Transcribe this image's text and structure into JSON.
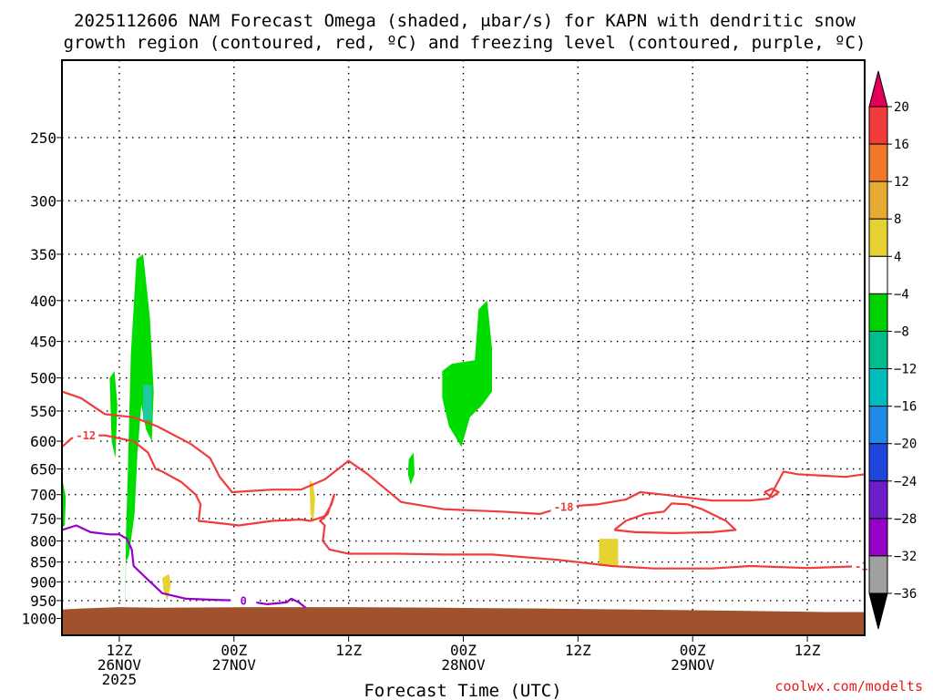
{
  "chart_data": {
    "type": "time-height cross-section",
    "title_line1": "2025112606 NAM Forecast Omega (shaded, μbar/s) for KAPN with dendritic snow",
    "title_line2": "growth region (contoured, red, ºC) and freezing level (contoured, purple, ºC)",
    "xlabel": "Forecast Time (UTC)",
    "credit": "coolwx.com/modelts",
    "y_axis": {
      "scale": "log-pressure (hPa)",
      "ylim": [
        1050,
        200
      ],
      "inverted": true,
      "ticks": [
        "250",
        "300",
        "350",
        "400",
        "450",
        "500",
        "550",
        "600",
        "650",
        "700",
        "750",
        "800",
        "850",
        "900",
        "950",
        "1000"
      ]
    },
    "x_axis": {
      "unit": "forecast hour",
      "xlim": [
        0,
        84
      ],
      "ticks": [
        {
          "h": 6,
          "line1": "12Z",
          "line2": "26NOV",
          "line3": "2025"
        },
        {
          "h": 18,
          "line1": "00Z",
          "line2": "27NOV",
          "line3": ""
        },
        {
          "h": 30,
          "line1": "12Z",
          "line2": "",
          "line3": ""
        },
        {
          "h": 42,
          "line1": "00Z",
          "line2": "28NOV",
          "line3": ""
        },
        {
          "h": 54,
          "line1": "12Z",
          "line2": "",
          "line3": ""
        },
        {
          "h": 66,
          "line1": "00Z",
          "line2": "29NOV",
          "line3": ""
        },
        {
          "h": 78,
          "line1": "12Z",
          "line2": "",
          "line3": ""
        }
      ]
    },
    "grid": true,
    "colorbar": {
      "labels": [
        "20",
        "16",
        "12",
        "8",
        "4",
        "−4",
        "−8",
        "−12",
        "−16",
        "−20",
        "−24",
        "−28",
        "−32",
        "−36"
      ],
      "colors": [
        "#e0005a",
        "#f03c3c",
        "#f07828",
        "#e6aa32",
        "#e6d232",
        "#ffffff",
        "#00d200",
        "#00be8c",
        "#00bebe",
        "#1e8ce6",
        "#1e46dc",
        "#6e1ec8",
        "#9600c8",
        "#a0a0a0",
        "#000000"
      ]
    },
    "omega_shaded": [
      {
        "color": "#00dc00",
        "category": "−4 to −8",
        "points": [
          [
            6.6,
            1025
          ],
          [
            6.7,
            780
          ],
          [
            6.9,
            650
          ],
          [
            7.2,
            470
          ],
          [
            7.8,
            355
          ],
          [
            8.5,
            350
          ],
          [
            9.2,
            420
          ],
          [
            9.6,
            520
          ],
          [
            9.4,
            600
          ],
          [
            8.8,
            580
          ],
          [
            8.3,
            540
          ],
          [
            7.9,
            620
          ],
          [
            7.6,
            740
          ],
          [
            7.0,
            835
          ],
          [
            6.7,
            850
          ]
        ]
      },
      {
        "color": "#00dc00",
        "category": "−4 to −8",
        "points": [
          [
            5.0,
            500
          ],
          [
            5.5,
            490
          ],
          [
            5.8,
            540
          ],
          [
            5.6,
            630
          ],
          [
            5.2,
            600
          ]
        ]
      },
      {
        "color": "#00dc00",
        "category": "−4 to −8",
        "points": [
          [
            0.0,
            665
          ],
          [
            0.4,
            705
          ],
          [
            0.3,
            765
          ],
          [
            0.0,
            770
          ]
        ]
      },
      {
        "color": "#00dc00",
        "category": "−4 to −8",
        "points": [
          [
            39.8,
            490
          ],
          [
            40.8,
            480
          ],
          [
            43.2,
            475
          ],
          [
            43.6,
            410
          ],
          [
            44.5,
            400
          ],
          [
            45.0,
            460
          ],
          [
            45.0,
            520
          ],
          [
            44.0,
            540
          ],
          [
            42.7,
            560
          ],
          [
            41.8,
            610
          ],
          [
            40.5,
            575
          ],
          [
            39.8,
            530
          ]
        ]
      },
      {
        "color": "#00dc00",
        "category": "−4 to −8",
        "points": [
          [
            36.3,
            632
          ],
          [
            36.8,
            620
          ],
          [
            36.9,
            660
          ],
          [
            36.5,
            680
          ],
          [
            36.2,
            660
          ]
        ]
      },
      {
        "color": "#1ec8a0",
        "category": "−8 to −12",
        "points": [
          [
            8.5,
            510
          ],
          [
            9.4,
            510
          ],
          [
            9.4,
            565
          ],
          [
            8.5,
            565
          ]
        ]
      },
      {
        "color": "#e6d232",
        "category": "4 to 8",
        "points": [
          [
            25.9,
            670
          ],
          [
            26.3,
            680
          ],
          [
            26.5,
            710
          ],
          [
            26.3,
            760
          ],
          [
            26.0,
            740
          ]
        ]
      },
      {
        "color": "#e6d232",
        "category": "4 to 8",
        "points": [
          [
            10.5,
            890
          ],
          [
            11.2,
            880
          ],
          [
            11.4,
            910
          ],
          [
            11.0,
            950
          ],
          [
            10.6,
            920
          ]
        ]
      },
      {
        "color": "#e6d232",
        "category": "4 to 8",
        "points": [
          [
            56.2,
            795
          ],
          [
            58.2,
            795
          ],
          [
            58.2,
            860
          ],
          [
            56.2,
            860
          ]
        ]
      }
    ],
    "dgz_contours_red": [
      {
        "label": "-18",
        "points": [
          [
            0.0,
            520
          ],
          [
            2.0,
            530
          ],
          [
            4.5,
            555
          ],
          [
            7.5,
            560
          ],
          [
            10.0,
            575
          ],
          [
            13.5,
            605
          ],
          [
            15.5,
            630
          ],
          [
            16.5,
            665
          ],
          [
            17.8,
            695
          ],
          [
            22.0,
            690
          ],
          [
            25.0,
            690
          ],
          [
            27.5,
            670
          ],
          [
            30.0,
            635
          ],
          [
            32.0,
            660
          ],
          [
            35.5,
            715
          ],
          [
            40.0,
            730
          ],
          [
            46.0,
            735
          ],
          [
            50.0,
            740
          ],
          [
            52.5,
            725
          ],
          [
            56.0,
            720
          ],
          [
            59.0,
            710
          ],
          [
            60.5,
            695
          ],
          [
            63.0,
            700
          ],
          [
            68.0,
            712
          ],
          [
            72.0,
            712
          ],
          [
            74.0,
            708
          ],
          [
            75.5,
            655
          ],
          [
            77.0,
            660
          ],
          [
            79.0,
            662
          ],
          [
            82.0,
            665
          ],
          [
            84.0,
            660
          ]
        ]
      },
      {
        "label": "-12",
        "points": [
          [
            0.0,
            610
          ],
          [
            1.0,
            595
          ],
          [
            2.5,
            590
          ],
          [
            4.5,
            590
          ],
          [
            7.5,
            600
          ],
          [
            9.0,
            620
          ],
          [
            9.8,
            650
          ],
          [
            10.5,
            655
          ],
          [
            12.5,
            675
          ],
          [
            14.0,
            700
          ],
          [
            14.5,
            720
          ],
          [
            14.3,
            755
          ],
          [
            16.5,
            760
          ],
          [
            18.5,
            765
          ],
          [
            22.0,
            755
          ],
          [
            25.0,
            752
          ],
          [
            26.0,
            755
          ],
          [
            27.5,
            745
          ],
          [
            28.2,
            720
          ],
          [
            28.5,
            700
          ],
          [
            27.8,
            740
          ],
          [
            27.0,
            755
          ],
          [
            27.5,
            765
          ],
          [
            27.3,
            800
          ],
          [
            28.0,
            820
          ],
          [
            30.0,
            830
          ],
          [
            35.0,
            830
          ],
          [
            40.0,
            832
          ],
          [
            45.0,
            832
          ],
          [
            52.0,
            845
          ],
          [
            57.5,
            860
          ],
          [
            62.0,
            866
          ],
          [
            68.0,
            866
          ],
          [
            72.0,
            860
          ],
          [
            78.0,
            865
          ],
          [
            84.0,
            860
          ]
        ]
      },
      {
        "label": "-18",
        "points": [
          [
            57.8,
            775
          ],
          [
            59.0,
            755
          ],
          [
            61.0,
            740
          ],
          [
            63.0,
            735
          ],
          [
            63.8,
            718
          ],
          [
            65.5,
            720
          ],
          [
            67.0,
            730
          ],
          [
            68.5,
            745
          ],
          [
            69.5,
            755
          ],
          [
            70.5,
            775
          ],
          [
            68.0,
            780
          ],
          [
            64.0,
            782
          ],
          [
            60.0,
            780
          ],
          [
            57.8,
            775
          ]
        ]
      },
      {
        "label": "",
        "points": [
          [
            73.5,
            695
          ],
          [
            74.3,
            688
          ],
          [
            75.0,
            695
          ],
          [
            74.3,
            705
          ],
          [
            73.5,
            695
          ]
        ]
      }
    ],
    "freezing_level_purple": [
      {
        "label": "0",
        "points": [
          [
            0.0,
            775
          ],
          [
            1.5,
            765
          ],
          [
            3.0,
            780
          ],
          [
            5.0,
            785
          ],
          [
            6.0,
            785
          ],
          [
            6.8,
            795
          ],
          [
            7.3,
            820
          ],
          [
            7.5,
            860
          ],
          [
            8.8,
            890
          ],
          [
            10.5,
            930
          ],
          [
            13.0,
            945
          ],
          [
            16.0,
            948
          ],
          [
            19.0,
            950
          ],
          [
            21.5,
            960
          ],
          [
            23.5,
            955
          ],
          [
            24.0,
            945
          ],
          [
            24.8,
            955
          ],
          [
            25.5,
            970
          ]
        ]
      }
    ],
    "terrain": {
      "color": "#a0522d",
      "points": [
        [
          0,
          975
        ],
        [
          2,
          972
        ],
        [
          6,
          968
        ],
        [
          10,
          970
        ],
        [
          20,
          968
        ],
        [
          30,
          968
        ],
        [
          40,
          970
        ],
        [
          50,
          972
        ],
        [
          60,
          975
        ],
        [
          70,
          978
        ],
        [
          80,
          982
        ],
        [
          84,
          982
        ]
      ]
    }
  }
}
